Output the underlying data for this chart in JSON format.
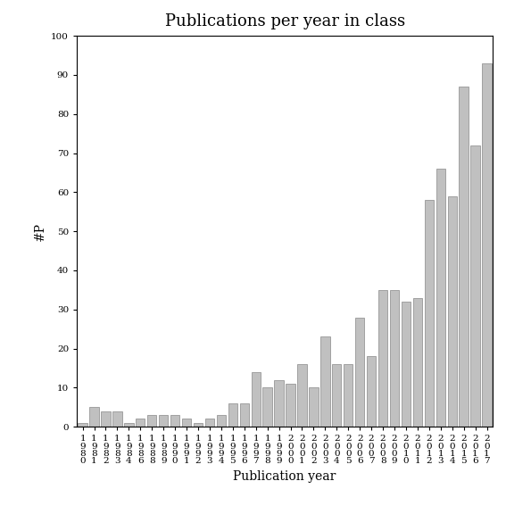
{
  "title": "Publications per year in class",
  "xlabel": "Publication year",
  "ylabel": "#P",
  "ylim": [
    0,
    100
  ],
  "yticks": [
    0,
    10,
    20,
    30,
    40,
    50,
    60,
    70,
    80,
    90,
    100
  ],
  "years": [
    "1980",
    "1981",
    "1982",
    "1983",
    "1984",
    "1986",
    "1988",
    "1989",
    "1990",
    "1991",
    "1992",
    "1993",
    "1994",
    "1995",
    "1996",
    "1997",
    "1998",
    "1999",
    "2000",
    "2001",
    "2002",
    "2003",
    "2004",
    "2005",
    "2006",
    "2007",
    "2008",
    "2009",
    "2010",
    "2011",
    "2012",
    "2013",
    "2014",
    "2015",
    "2016",
    "2017"
  ],
  "values": [
    1,
    5,
    4,
    4,
    1,
    2,
    3,
    3,
    3,
    2,
    1,
    2,
    3,
    6,
    6,
    14,
    10,
    12,
    11,
    16,
    10,
    23,
    16,
    16,
    28,
    18,
    35,
    35,
    32,
    33,
    58,
    66,
    59,
    87,
    72,
    93
  ],
  "bar_color": "#c0c0c0",
  "bar_edge_color": "#888888",
  "background_color": "#ffffff",
  "title_fontsize": 13,
  "axis_fontsize": 10,
  "tick_fontsize": 7.5
}
